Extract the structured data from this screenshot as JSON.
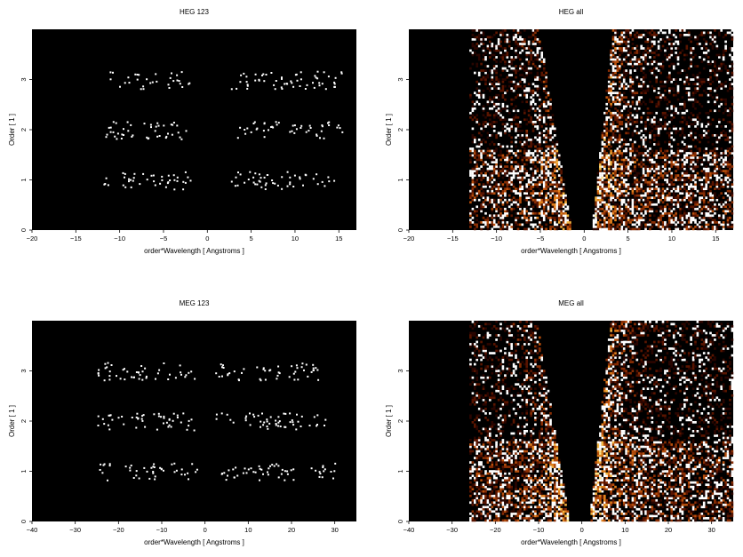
{
  "chart_data": [
    {
      "type": "heatmap",
      "title": "HEG 123",
      "xlabel": "order*Wavelength [ Angstroms ]",
      "ylabel": "Order [ 1 ]",
      "xlim": [
        -20,
        17
      ],
      "ylim": [
        0,
        4
      ],
      "xticks": [
        -20,
        -15,
        -10,
        -5,
        0,
        5,
        10,
        15
      ],
      "yticks": [
        0,
        1,
        2,
        3
      ],
      "background": "#000000",
      "bands": [
        {
          "order": 1,
          "x_range": [
            -12,
            14.5
          ],
          "density": "sparse, peaks near -5 and 5"
        },
        {
          "order": 2,
          "x_range": [
            -12,
            15.5
          ],
          "density": "sparse"
        },
        {
          "order": 3,
          "x_range": [
            -12,
            15.5
          ],
          "density": "sparse"
        }
      ],
      "gap": [
        -2,
        2.5
      ]
    },
    {
      "type": "heatmap",
      "title": "HEG all",
      "xlabel": "order*Wavelength [ Angstroms ]",
      "ylabel": "Order [ 1 ]",
      "xlim": [
        -20,
        17
      ],
      "ylim": [
        0,
        4
      ],
      "xticks": [
        -20,
        -15,
        -10,
        -5,
        0,
        5,
        10,
        15
      ],
      "yticks": [
        0,
        1,
        2,
        3
      ],
      "background": "#000000",
      "data_x_range": [
        -13,
        17
      ],
      "cone_gap_at_zero": [
        -1,
        1
      ],
      "bright_region": "low orders, |x| < 13"
    },
    {
      "type": "heatmap",
      "title": "MEG 123",
      "xlabel": "order*Wavelength [ Angstroms ]",
      "ylabel": "Order [ 1 ]",
      "xlim": [
        -40,
        35
      ],
      "ylim": [
        0,
        4
      ],
      "xticks": [
        -40,
        -30,
        -20,
        -10,
        0,
        10,
        20,
        30
      ],
      "yticks": [
        0,
        1,
        2,
        3
      ],
      "background": "#000000",
      "bands": [
        {
          "order": 1,
          "x_range": [
            -25,
            30
          ],
          "density": "sparse, peaks near -5 and 3"
        },
        {
          "order": 2,
          "x_range": [
            -25,
            28
          ],
          "density": "sparse"
        },
        {
          "order": 3,
          "x_range": [
            -25,
            26
          ],
          "density": "sparse"
        }
      ],
      "gap": [
        -2,
        2
      ]
    },
    {
      "type": "heatmap",
      "title": "MEG all",
      "xlabel": "order*Wavelength [ Angstroms ]",
      "ylabel": "Order [ 1 ]",
      "xlim": [
        -40,
        35
      ],
      "ylim": [
        0,
        4
      ],
      "xticks": [
        -40,
        -30,
        -20,
        -10,
        0,
        10,
        20,
        30
      ],
      "yticks": [
        0,
        1,
        2,
        3
      ],
      "background": "#000000",
      "data_x_range": [
        -26,
        35
      ],
      "cone_gap_at_zero": [
        -2,
        2
      ],
      "bright_region": "low orders, |x| < 26"
    }
  ],
  "colors": {
    "heat": [
      "#2a0500",
      "#5a1500",
      "#8a2e04",
      "#b84f0c",
      "#e0801c",
      "#f5b640",
      "#ffe58a",
      "#ffffff"
    ]
  }
}
